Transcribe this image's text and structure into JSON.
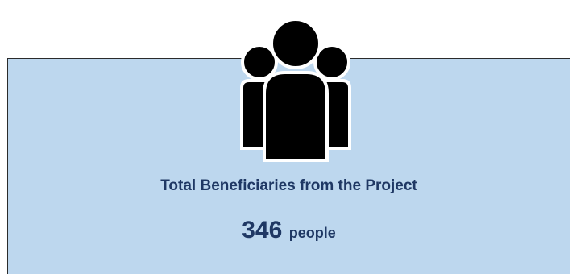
{
  "summary": {
    "icon": "people-group-icon",
    "title": "Total Beneficiaries from the Project",
    "count": "346",
    "unit": "people"
  },
  "colors": {
    "card_background": "#bdd7ee",
    "text": "#1f3864",
    "icon": "#000000"
  }
}
